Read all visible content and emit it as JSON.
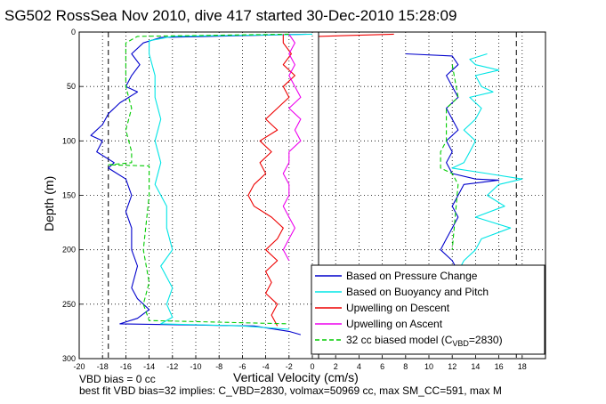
{
  "chart_data": {
    "type": "line",
    "title": "SG502 RossSea Nov 2010, dive 417 started 30-Dec-2010 15:28:09",
    "xlabel": "Vertical Velocity (cm/s)",
    "ylabel": "Depth (m)",
    "xlim": [
      -20,
      20
    ],
    "ylim": [
      300,
      0
    ],
    "y_reversed": true,
    "grid": true,
    "x_ticks": [
      "-20",
      "-18",
      "-16",
      "-14",
      "-12",
      "-10",
      "-8",
      "-6",
      "-4",
      "-2",
      "0",
      "2",
      "4",
      "6",
      "8",
      "10",
      "12",
      "14",
      "16",
      "18"
    ],
    "y_ticks": [
      "0",
      "50",
      "100",
      "150",
      "200",
      "250",
      "300"
    ],
    "x_tick_values": [
      -20,
      -18,
      -16,
      -14,
      -12,
      -10,
      -8,
      -6,
      -4,
      -2,
      0,
      2,
      4,
      6,
      8,
      10,
      12,
      14,
      16,
      18
    ],
    "y_tick_values": [
      0,
      50,
      100,
      150,
      200,
      250,
      300
    ],
    "vlines": [
      -17.5,
      17.5
    ],
    "legend_position": "bottom-right",
    "legend": [
      {
        "label": "Based on Pressure Change",
        "color": "#0000cc",
        "dash": false
      },
      {
        "label": "Based on Buoyancy and Pitch",
        "color": "#00e5e5",
        "dash": false
      },
      {
        "label": "Upwelling on Descent",
        "color": "#ee0000",
        "dash": false
      },
      {
        "label": "Upwelling on Ascent",
        "color": "#ee00ee",
        "dash": false
      },
      {
        "label": "32 cc biased model (C",
        "sub": "VBD",
        "suffix": "=2830)",
        "color": "#00cc00",
        "dash": true
      }
    ],
    "series": [
      {
        "name": "Based on Pressure Change",
        "color": "#0000cc",
        "points": [
          [
            -0.5,
            2
          ],
          [
            -13,
            5
          ],
          [
            -14.5,
            10
          ],
          [
            -15.5,
            20
          ],
          [
            -14.8,
            30
          ],
          [
            -15.5,
            40
          ],
          [
            -16,
            50
          ],
          [
            -15,
            55
          ],
          [
            -16.5,
            65
          ],
          [
            -17.5,
            75
          ],
          [
            -18,
            85
          ],
          [
            -19,
            95
          ],
          [
            -18,
            100
          ],
          [
            -18.5,
            110
          ],
          [
            -17,
            120
          ],
          [
            -17.5,
            125
          ],
          [
            -16,
            135
          ],
          [
            -15.5,
            150
          ],
          [
            -16,
            165
          ],
          [
            -15.5,
            180
          ],
          [
            -15.5,
            200
          ],
          [
            -15,
            215
          ],
          [
            -15.5,
            235
          ],
          [
            -15,
            245
          ],
          [
            -14,
            255
          ],
          [
            -15,
            263
          ],
          [
            -16.5,
            268
          ],
          [
            -5,
            270
          ],
          [
            -2,
            275
          ],
          [
            -1,
            278
          ]
        ]
      },
      {
        "name": "Based on Buoyancy and Pitch",
        "color": "#00e5e5",
        "points": [
          [
            0,
            2
          ],
          [
            -12,
            4
          ],
          [
            -14,
            8
          ],
          [
            -14,
            20
          ],
          [
            -13.5,
            40
          ],
          [
            -13.5,
            60
          ],
          [
            -13,
            80
          ],
          [
            -13.5,
            100
          ],
          [
            -13,
            120
          ],
          [
            -13.5,
            140
          ],
          [
            -12.5,
            160
          ],
          [
            -12.5,
            180
          ],
          [
            -12,
            200
          ],
          [
            -13,
            215
          ],
          [
            -12,
            235
          ],
          [
            -12.5,
            250
          ],
          [
            -12,
            262
          ],
          [
            -13,
            268
          ],
          [
            -6,
            270
          ],
          [
            -2,
            273
          ]
        ]
      },
      {
        "name": "Upwelling on Descent",
        "color": "#ee0000",
        "points": [
          [
            -2.5,
            2
          ],
          [
            -2.5,
            10
          ],
          [
            -1.8,
            20
          ],
          [
            -2.5,
            30
          ],
          [
            -1.5,
            40
          ],
          [
            -2.5,
            50
          ],
          [
            -2,
            60
          ],
          [
            -3,
            70
          ],
          [
            -4,
            80
          ],
          [
            -3,
            90
          ],
          [
            -4.5,
            100
          ],
          [
            -3.5,
            110
          ],
          [
            -4.5,
            120
          ],
          [
            -4,
            130
          ],
          [
            -5,
            140
          ],
          [
            -5.5,
            150
          ],
          [
            -5,
            160
          ],
          [
            -3.5,
            170
          ],
          [
            -2.5,
            180
          ],
          [
            -3,
            190
          ],
          [
            -4,
            200
          ],
          [
            -3,
            210
          ],
          [
            -4,
            220
          ],
          [
            -3.5,
            230
          ],
          [
            -4,
            240
          ],
          [
            -3,
            250
          ],
          [
            -3.5,
            260
          ],
          [
            -3,
            270
          ]
        ]
      },
      {
        "name": "Upwelling on Ascent",
        "color": "#ee00ee",
        "points": [
          [
            -2,
            2
          ],
          [
            -1.5,
            10
          ],
          [
            -2,
            20
          ],
          [
            -1.5,
            30
          ],
          [
            -2,
            40
          ],
          [
            -1.5,
            50
          ],
          [
            -1,
            60
          ],
          [
            -2,
            70
          ],
          [
            -1,
            80
          ],
          [
            -1.5,
            90
          ],
          [
            -1,
            100
          ],
          [
            -2,
            110
          ],
          [
            -2,
            120
          ],
          [
            -2.5,
            130
          ],
          [
            -2,
            140
          ],
          [
            -2,
            150
          ],
          [
            -2.5,
            160
          ],
          [
            -2,
            170
          ],
          [
            -1.5,
            180
          ],
          [
            -2,
            190
          ],
          [
            -2.5,
            200
          ],
          [
            -2,
            210
          ]
        ]
      },
      {
        "name": "32 cc biased model (CVBD=2830)",
        "color": "#00cc00",
        "dash": true,
        "points": [
          [
            -2,
            2
          ],
          [
            -15,
            4
          ],
          [
            -16,
            10
          ],
          [
            -16,
            50
          ],
          [
            -15.5,
            70
          ],
          [
            -16,
            90
          ],
          [
            -15.5,
            110
          ],
          [
            -15.5,
            120
          ],
          [
            -17.5,
            122
          ],
          [
            -14,
            123
          ],
          [
            -14,
            150
          ],
          [
            -14.5,
            200
          ],
          [
            -14,
            230
          ],
          [
            -14.5,
            250
          ],
          [
            -14,
            265
          ],
          [
            -2,
            268
          ]
        ]
      },
      {
        "name": "Based on Pressure Change (ascent)",
        "color": "#0000cc",
        "points": [
          [
            8,
            20
          ],
          [
            12,
            22
          ],
          [
            12.5,
            30
          ],
          [
            11.5,
            40
          ],
          [
            12,
            50
          ],
          [
            12.5,
            60
          ],
          [
            11.5,
            70
          ],
          [
            12,
            80
          ],
          [
            12.5,
            90
          ],
          [
            11.5,
            100
          ],
          [
            12,
            110
          ],
          [
            11.5,
            120
          ],
          [
            12,
            130
          ],
          [
            14,
            135
          ],
          [
            16,
            136
          ],
          [
            13,
            140
          ],
          [
            12.5,
            150
          ],
          [
            12,
            160
          ],
          [
            12.5,
            170
          ],
          [
            12,
            180
          ],
          [
            11.5,
            190
          ],
          [
            11,
            200
          ],
          [
            12,
            210
          ],
          [
            12.5,
            220
          ]
        ]
      },
      {
        "name": "Based on Buoyancy and Pitch (ascent)",
        "color": "#00e5e5",
        "points": [
          [
            15,
            20
          ],
          [
            13.5,
            25
          ],
          [
            14,
            30
          ],
          [
            16,
            35
          ],
          [
            14,
            40
          ],
          [
            14.5,
            50
          ],
          [
            15.5,
            55
          ],
          [
            13.5,
            60
          ],
          [
            14.5,
            70
          ],
          [
            14,
            80
          ],
          [
            13,
            90
          ],
          [
            14,
            100
          ],
          [
            13.5,
            110
          ],
          [
            13,
            120
          ],
          [
            12,
            125
          ],
          [
            15,
            130
          ],
          [
            18,
            135
          ],
          [
            16,
            140
          ],
          [
            15,
            150
          ],
          [
            16.5,
            160
          ],
          [
            14,
            170
          ],
          [
            17,
            180
          ],
          [
            14.5,
            190
          ],
          [
            14,
            200
          ],
          [
            13,
            210
          ],
          [
            12.5,
            220
          ]
        ]
      },
      {
        "name": "32 cc biased model (ascent)",
        "color": "#00cc00",
        "dash": true,
        "points": [
          [
            12,
            30
          ],
          [
            12.5,
            60
          ],
          [
            11.5,
            70
          ],
          [
            11.5,
            100
          ],
          [
            11,
            110
          ],
          [
            11,
            125
          ],
          [
            12,
            130
          ],
          [
            12.5,
            140
          ],
          [
            12,
            200
          ]
        ]
      },
      {
        "name": "Upwelling on Descent (surface)",
        "color": "#ee0000",
        "points": [
          [
            7,
            2
          ],
          [
            0.5,
            4
          ]
        ]
      }
    ],
    "notes": [
      "VBD bias = 0 cc",
      "best fit VBD bias=32 implies: C_VBD=2830, volmax=50969 cc, max SM_CC=591, max M"
    ]
  }
}
